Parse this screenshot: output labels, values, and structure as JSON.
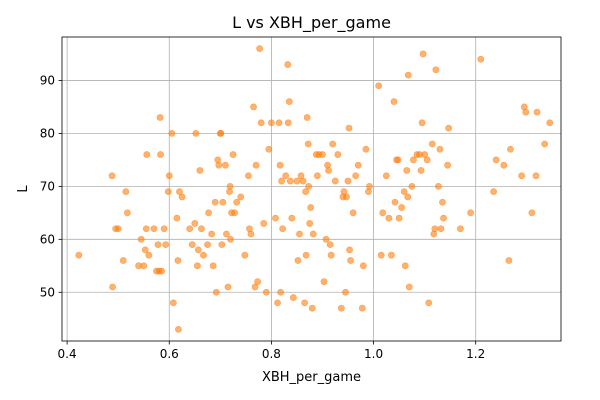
{
  "chart_data": {
    "type": "scatter",
    "title": "L vs XBH_per_game",
    "xlabel": "XBH_per_game",
    "ylabel": "L",
    "xlim": [
      0.39,
      1.367
    ],
    "ylim": [
      40.8,
      98.2
    ],
    "x_ticks": [
      0.4,
      0.6,
      0.8,
      1.0,
      1.2
    ],
    "x_tick_labels": [
      "0.4",
      "0.6",
      "0.8",
      "1.0",
      "1.2"
    ],
    "y_ticks": [
      50,
      60,
      70,
      80,
      90
    ],
    "y_tick_labels": [
      "50",
      "60",
      "70",
      "80",
      "90"
    ],
    "grid": true,
    "legend": "none",
    "series": [
      {
        "color": "#ff7f0e",
        "opacity": 0.6,
        "points": [
          [
            0.423,
            57
          ],
          [
            0.488,
            72
          ],
          [
            0.489,
            51
          ],
          [
            0.495,
            62
          ],
          [
            0.5,
            62
          ],
          [
            0.51,
            56
          ],
          [
            0.515,
            69
          ],
          [
            0.518,
            65
          ],
          [
            0.54,
            55
          ],
          [
            0.545,
            60
          ],
          [
            0.55,
            55
          ],
          [
            0.553,
            58
          ],
          [
            0.555,
            62
          ],
          [
            0.556,
            76
          ],
          [
            0.56,
            57
          ],
          [
            0.57,
            62
          ],
          [
            0.575,
            54
          ],
          [
            0.578,
            59
          ],
          [
            0.58,
            54
          ],
          [
            0.582,
            83
          ],
          [
            0.583,
            76
          ],
          [
            0.585,
            54
          ],
          [
            0.59,
            62
          ],
          [
            0.593,
            59
          ],
          [
            0.598,
            69
          ],
          [
            0.6,
            72
          ],
          [
            0.605,
            80
          ],
          [
            0.608,
            48
          ],
          [
            0.615,
            64
          ],
          [
            0.617,
            56
          ],
          [
            0.618,
            43
          ],
          [
            0.62,
            69
          ],
          [
            0.625,
            68
          ],
          [
            0.64,
            62
          ],
          [
            0.645,
            59
          ],
          [
            0.65,
            63
          ],
          [
            0.652,
            80
          ],
          [
            0.655,
            55
          ],
          [
            0.657,
            58
          ],
          [
            0.66,
            73
          ],
          [
            0.663,
            62
          ],
          [
            0.667,
            57
          ],
          [
            0.675,
            59
          ],
          [
            0.677,
            65
          ],
          [
            0.683,
            61
          ],
          [
            0.686,
            55
          ],
          [
            0.69,
            67
          ],
          [
            0.692,
            50
          ],
          [
            0.695,
            75
          ],
          [
            0.697,
            74
          ],
          [
            0.7,
            80
          ],
          [
            0.701,
            80
          ],
          [
            0.703,
            59
          ],
          [
            0.705,
            67
          ],
          [
            0.71,
            74
          ],
          [
            0.712,
            61
          ],
          [
            0.715,
            51
          ],
          [
            0.718,
            69
          ],
          [
            0.719,
            70
          ],
          [
            0.72,
            60
          ],
          [
            0.722,
            65
          ],
          [
            0.725,
            76
          ],
          [
            0.728,
            65
          ],
          [
            0.732,
            67
          ],
          [
            0.74,
            68
          ],
          [
            0.748,
            57
          ],
          [
            0.755,
            72
          ],
          [
            0.757,
            62
          ],
          [
            0.76,
            61
          ],
          [
            0.765,
            85
          ],
          [
            0.768,
            51
          ],
          [
            0.77,
            74
          ],
          [
            0.773,
            52
          ],
          [
            0.777,
            96
          ],
          [
            0.78,
            82
          ],
          [
            0.785,
            63
          ],
          [
            0.79,
            50
          ],
          [
            0.795,
            77
          ],
          [
            0.8,
            82
          ],
          [
            0.808,
            64
          ],
          [
            0.812,
            48
          ],
          [
            0.815,
            82
          ],
          [
            0.817,
            74
          ],
          [
            0.818,
            50
          ],
          [
            0.82,
            71
          ],
          [
            0.822,
            62
          ],
          [
            0.828,
            72
          ],
          [
            0.832,
            93
          ],
          [
            0.833,
            82
          ],
          [
            0.835,
            86
          ],
          [
            0.837,
            71
          ],
          [
            0.84,
            64
          ],
          [
            0.843,
            49
          ],
          [
            0.85,
            71
          ],
          [
            0.852,
            56
          ],
          [
            0.855,
            61
          ],
          [
            0.858,
            72
          ],
          [
            0.862,
            71
          ],
          [
            0.865,
            48
          ],
          [
            0.867,
            69
          ],
          [
            0.868,
            57
          ],
          [
            0.87,
            83
          ],
          [
            0.872,
            78
          ],
          [
            0.873,
            70
          ],
          [
            0.875,
            63
          ],
          [
            0.877,
            66
          ],
          [
            0.88,
            47
          ],
          [
            0.882,
            61
          ],
          [
            0.888,
            76
          ],
          [
            0.89,
            72
          ],
          [
            0.893,
            76
          ],
          [
            0.9,
            76
          ],
          [
            0.903,
            52
          ],
          [
            0.907,
            60
          ],
          [
            0.91,
            74
          ],
          [
            0.912,
            73
          ],
          [
            0.915,
            59
          ],
          [
            0.917,
            57
          ],
          [
            0.92,
            78
          ],
          [
            0.925,
            71
          ],
          [
            0.93,
            76
          ],
          [
            0.937,
            47
          ],
          [
            0.94,
            68
          ],
          [
            0.942,
            69
          ],
          [
            0.945,
            50
          ],
          [
            0.947,
            68
          ],
          [
            0.95,
            71
          ],
          [
            0.952,
            81
          ],
          [
            0.953,
            58
          ],
          [
            0.955,
            56
          ],
          [
            0.96,
            65
          ],
          [
            0.965,
            72
          ],
          [
            0.97,
            74
          ],
          [
            0.978,
            47
          ],
          [
            0.98,
            55
          ],
          [
            0.985,
            77
          ],
          [
            0.99,
            69
          ],
          [
            0.992,
            70
          ],
          [
            1.01,
            89
          ],
          [
            1.015,
            57
          ],
          [
            1.018,
            65
          ],
          [
            1.025,
            72
          ],
          [
            1.03,
            64
          ],
          [
            1.035,
            57
          ],
          [
            1.04,
            86
          ],
          [
            1.042,
            67
          ],
          [
            1.045,
            75
          ],
          [
            1.048,
            75
          ],
          [
            1.05,
            64
          ],
          [
            1.055,
            66
          ],
          [
            1.06,
            69
          ],
          [
            1.062,
            55
          ],
          [
            1.065,
            73
          ],
          [
            1.067,
            68
          ],
          [
            1.068,
            91
          ],
          [
            1.07,
            51
          ],
          [
            1.075,
            70
          ],
          [
            1.078,
            75
          ],
          [
            1.085,
            76
          ],
          [
            1.09,
            76
          ],
          [
            1.093,
            73
          ],
          [
            1.095,
            82
          ],
          [
            1.097,
            95
          ],
          [
            1.1,
            76
          ],
          [
            1.105,
            75
          ],
          [
            1.108,
            48
          ],
          [
            1.115,
            78
          ],
          [
            1.118,
            61
          ],
          [
            1.12,
            62
          ],
          [
            1.122,
            92
          ],
          [
            1.127,
            70
          ],
          [
            1.13,
            77
          ],
          [
            1.132,
            62
          ],
          [
            1.135,
            67
          ],
          [
            1.137,
            64
          ],
          [
            1.145,
            74
          ],
          [
            1.147,
            81
          ],
          [
            1.17,
            62
          ],
          [
            1.19,
            65
          ],
          [
            1.21,
            94
          ],
          [
            1.235,
            69
          ],
          [
            1.24,
            75
          ],
          [
            1.255,
            74
          ],
          [
            1.265,
            56
          ],
          [
            1.268,
            77
          ],
          [
            1.29,
            72
          ],
          [
            1.295,
            85
          ],
          [
            1.298,
            84
          ],
          [
            1.31,
            65
          ],
          [
            1.318,
            72
          ],
          [
            1.32,
            84
          ],
          [
            1.335,
            78
          ],
          [
            1.345,
            82
          ]
        ]
      }
    ]
  }
}
